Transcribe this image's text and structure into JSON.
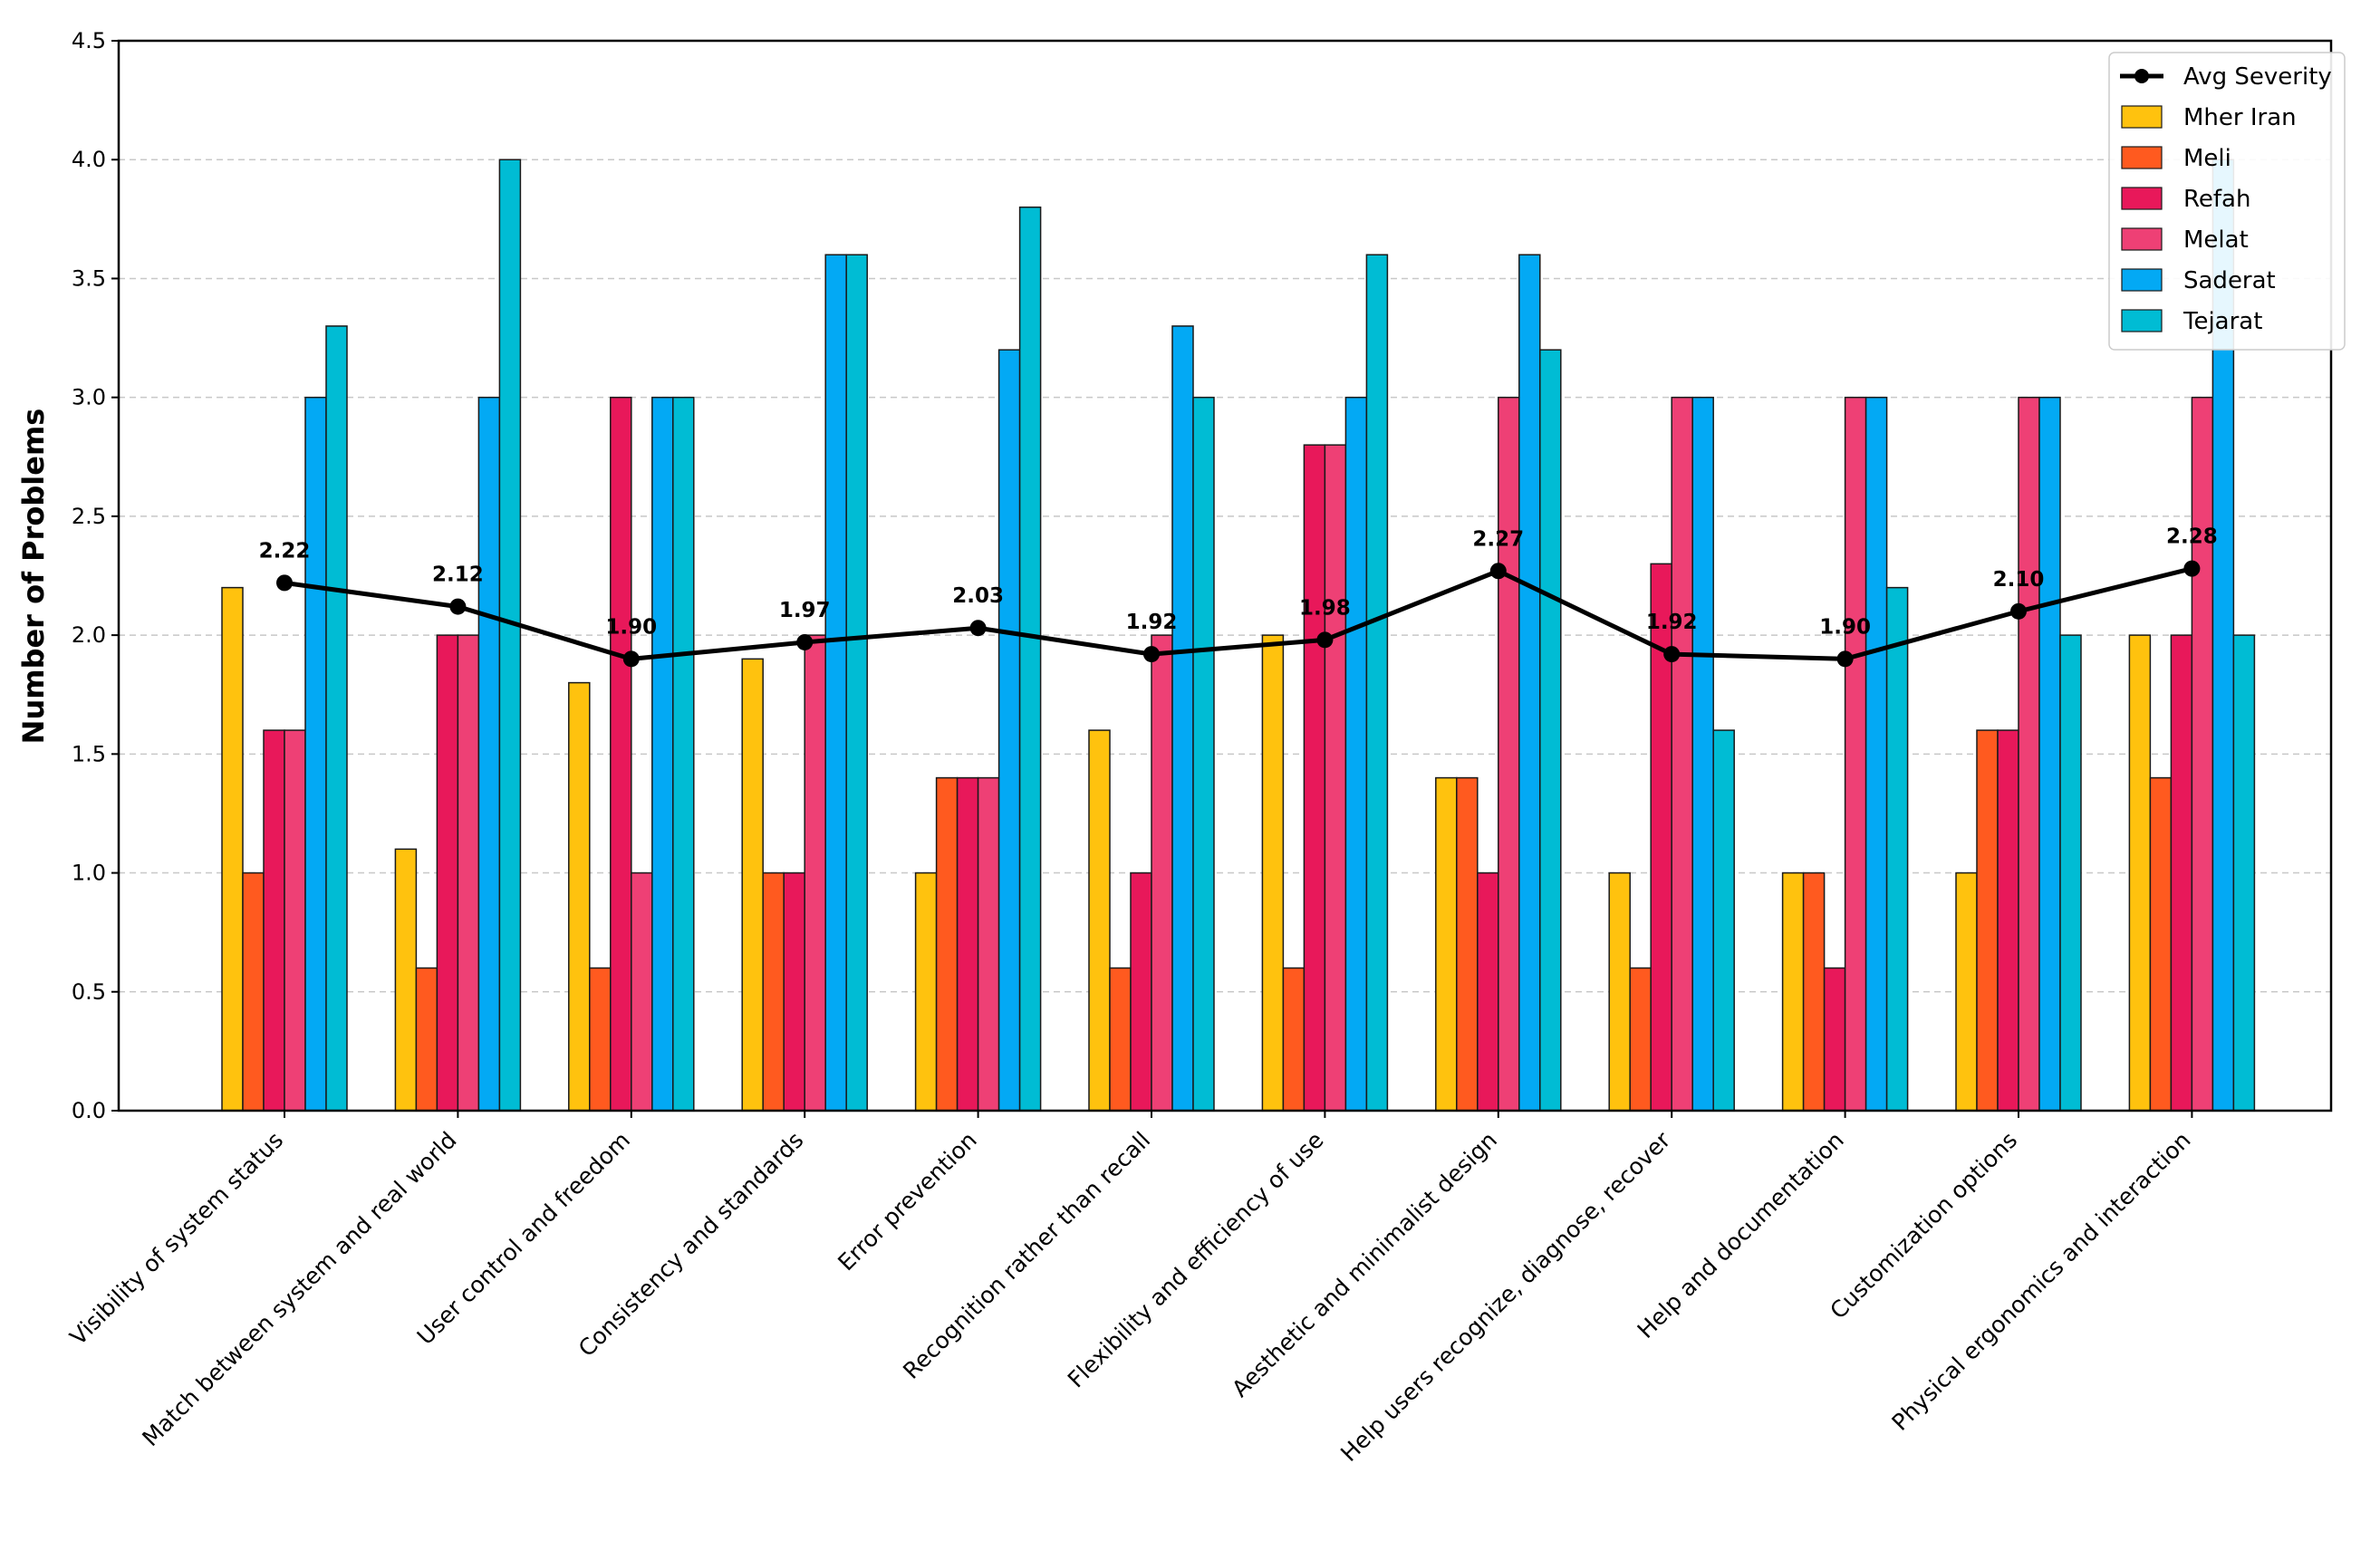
{
  "chart_data": {
    "type": "bar",
    "title": "",
    "xlabel": "",
    "ylabel": "Number of Problems",
    "ylim": [
      0,
      4.5
    ],
    "yticks": [
      "0.0",
      "0.5",
      "1.0",
      "1.5",
      "2.0",
      "2.5",
      "3.0",
      "3.5",
      "4.0",
      "4.5"
    ],
    "grid": "horizontal dashed",
    "legend_position": "top-right",
    "categories": [
      "Visibility of system status",
      "Match between system and real world",
      "User control and freedom",
      "Consistency and standards",
      "Error prevention",
      "Recognition rather than recall",
      "Flexibility and efficiency of use",
      "Aesthetic and minimalist design",
      "Help users recognize, diagnose, recover",
      "Help and documentation",
      "Customization options",
      "Physical ergonomics and interaction"
    ],
    "series": [
      {
        "name": "Mher Iran",
        "color": "#FFC20E",
        "values": [
          2.2,
          1.1,
          1.8,
          1.9,
          1.0,
          1.6,
          2.0,
          1.4,
          1.0,
          1.0,
          1.0,
          2.0
        ]
      },
      {
        "name": "Meli",
        "color": "#FF5A1F",
        "values": [
          1.0,
          0.6,
          0.6,
          1.0,
          1.4,
          0.6,
          0.6,
          1.4,
          0.6,
          1.0,
          1.6,
          1.4
        ]
      },
      {
        "name": "Refah",
        "color": "#E8185A",
        "values": [
          1.6,
          2.0,
          3.0,
          1.0,
          1.4,
          1.0,
          2.8,
          1.0,
          2.3,
          0.6,
          1.6,
          2.0
        ]
      },
      {
        "name": "Melat",
        "color": "#EE4075",
        "values": [
          1.6,
          2.0,
          1.0,
          2.0,
          1.4,
          2.0,
          2.8,
          3.0,
          3.0,
          3.0,
          3.0,
          3.0
        ]
      },
      {
        "name": "Saderat",
        "color": "#03A9F4",
        "values": [
          3.0,
          3.0,
          3.0,
          3.6,
          3.2,
          3.3,
          3.0,
          3.6,
          3.0,
          3.0,
          3.0,
          4.0
        ]
      },
      {
        "name": "Tejarat",
        "color": "#00BCD4",
        "values": [
          3.3,
          4.0,
          3.0,
          3.6,
          3.8,
          3.0,
          3.6,
          3.2,
          1.6,
          2.2,
          2.0,
          2.0
        ]
      }
    ],
    "line_series": {
      "name": "Avg Severity",
      "color": "#000000",
      "values": [
        2.22,
        2.12,
        1.9,
        1.97,
        2.03,
        1.92,
        1.98,
        2.27,
        1.92,
        1.9,
        2.1,
        2.28
      ],
      "labels": [
        "2.22",
        "2.12",
        "1.90",
        "1.97",
        "2.03",
        "1.92",
        "1.98",
        "2.27",
        "1.92",
        "1.90",
        "2.10",
        "2.28"
      ]
    },
    "legend": [
      "Avg Severity",
      "Mher Iran",
      "Meli",
      "Refah",
      "Melat",
      "Saderat",
      "Tejarat"
    ]
  }
}
